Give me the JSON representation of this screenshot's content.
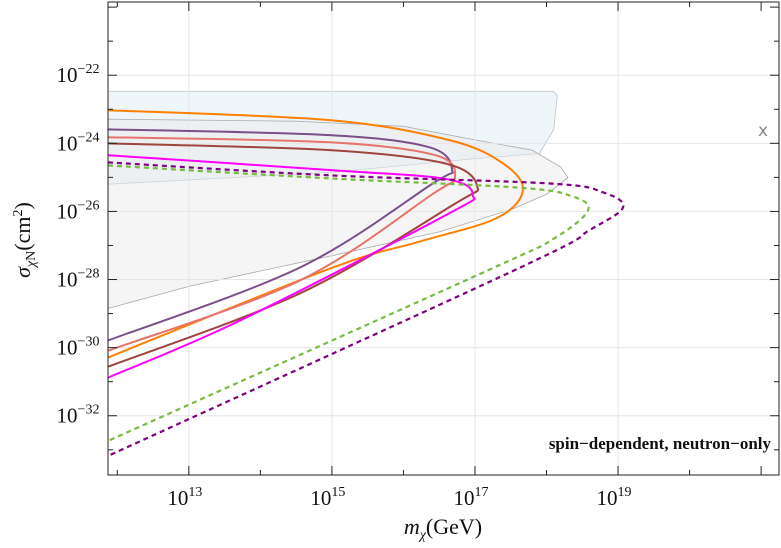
{
  "chart_data": {
    "type": "line",
    "xlabel": "m_χ(GeV)",
    "ylabel": "σ_χN(cm²)",
    "x_scale": "log",
    "y_scale": "log",
    "xlim_log10": [
      11.87,
      21.25
    ],
    "ylim_log10": [
      -33.74,
      -19.85
    ],
    "x_ticks": [
      {
        "exp": "13",
        "v": 13
      },
      {
        "exp": "15",
        "v": 15
      },
      {
        "exp": "17",
        "v": 17
      },
      {
        "exp": "19",
        "v": 19
      }
    ],
    "y_ticks": [
      {
        "exp": "−22",
        "v": -22
      },
      {
        "exp": "−24",
        "v": -24
      },
      {
        "exp": "−26",
        "v": -26
      },
      {
        "exp": "−28",
        "v": -28
      },
      {
        "exp": "−30",
        "v": -30
      },
      {
        "exp": "−32",
        "v": -32
      }
    ],
    "grid": true,
    "annotation": "spin−dependent, neutron−only",
    "corner_mark": "x",
    "regions": [
      {
        "fill": "#e4f0f7",
        "stroke": "#b9c4cc",
        "opacity": 0.6,
        "points_log10": [
          [
            11.87,
            -22.47
          ],
          [
            18.1,
            -22.47
          ],
          [
            18.15,
            -22.6
          ],
          [
            18.1,
            -23.6
          ],
          [
            17.9,
            -24.3
          ],
          [
            17.0,
            -24.45
          ],
          [
            15,
            -24.85
          ],
          [
            11.87,
            -25.2
          ]
        ]
      },
      {
        "fill": "#e8e8e8",
        "stroke": "#aaaaaa",
        "opacity": 0.45,
        "points_log10": [
          [
            11.87,
            -23.29
          ],
          [
            14.5,
            -23.35
          ],
          [
            16,
            -23.5
          ],
          [
            17,
            -23.9
          ],
          [
            17.8,
            -24.2
          ],
          [
            18.2,
            -24.7
          ],
          [
            18.3,
            -25.0
          ],
          [
            18.0,
            -25.5
          ],
          [
            17.5,
            -25.95
          ],
          [
            16.5,
            -26.6
          ],
          [
            15,
            -27.3
          ],
          [
            13,
            -28.2
          ],
          [
            11.87,
            -28.85
          ]
        ]
      }
    ],
    "series": [
      {
        "color": "#ff8000",
        "dash": false,
        "points_log10": [
          [
            11.87,
            -23.03
          ],
          [
            14.97,
            -23.32
          ],
          [
            16.65,
            -23.91
          ],
          [
            17.4,
            -24.6
          ],
          [
            17.67,
            -25.38
          ],
          [
            17.3,
            -26.2
          ],
          [
            16.2,
            -26.9
          ],
          [
            15.01,
            -27.65
          ],
          [
            11.87,
            -30.29
          ]
        ]
      },
      {
        "color": "#7b4f8a",
        "dash": false,
        "points_log10": [
          [
            11.87,
            -23.59
          ],
          [
            14.97,
            -23.76
          ],
          [
            16.37,
            -24.12
          ],
          [
            16.68,
            -24.79
          ],
          [
            16.41,
            -25.18
          ],
          [
            14.55,
            -27.65
          ],
          [
            11.87,
            -29.79
          ]
        ]
      },
      {
        "color": "#e8736a",
        "dash": false,
        "points_log10": [
          [
            11.87,
            -23.82
          ],
          [
            14.97,
            -23.97
          ],
          [
            16.45,
            -24.35
          ],
          [
            16.72,
            -25.0
          ],
          [
            16.4,
            -25.5
          ],
          [
            14.55,
            -28.03
          ],
          [
            11.87,
            -30.09
          ]
        ]
      },
      {
        "color": "#a0453e",
        "dash": false,
        "points_log10": [
          [
            11.87,
            -24.0
          ],
          [
            14.97,
            -24.2
          ],
          [
            16.6,
            -24.6
          ],
          [
            17.03,
            -25.26
          ],
          [
            16.7,
            -25.8
          ],
          [
            14.55,
            -28.41
          ],
          [
            11.87,
            -30.56
          ]
        ]
      },
      {
        "color": "#ff00ff",
        "dash": false,
        "points_log10": [
          [
            11.87,
            -24.35
          ],
          [
            15.01,
            -24.79
          ],
          [
            16.6,
            -25.05
          ],
          [
            16.97,
            -25.53
          ],
          [
            16.6,
            -26.1
          ],
          [
            13.71,
            -29.21
          ],
          [
            11.87,
            -30.88
          ]
        ]
      },
      {
        "color": "#800080",
        "dash": true,
        "points_log10": [
          [
            11.87,
            -24.56
          ],
          [
            14.97,
            -24.94
          ],
          [
            18.05,
            -25.18
          ],
          [
            18.79,
            -25.44
          ],
          [
            19.07,
            -25.88
          ],
          [
            18.6,
            -26.55
          ],
          [
            17.63,
            -27.65
          ],
          [
            11.87,
            -33.18
          ]
        ]
      },
      {
        "color": "#77bb41",
        "dash": true,
        "points_log10": [
          [
            11.87,
            -24.65
          ],
          [
            14.97,
            -25.03
          ],
          [
            17.6,
            -25.3
          ],
          [
            18.35,
            -25.55
          ],
          [
            18.58,
            -25.97
          ],
          [
            18.1,
            -26.8
          ],
          [
            17.17,
            -27.74
          ],
          [
            11.87,
            -32.74
          ]
        ]
      }
    ]
  }
}
